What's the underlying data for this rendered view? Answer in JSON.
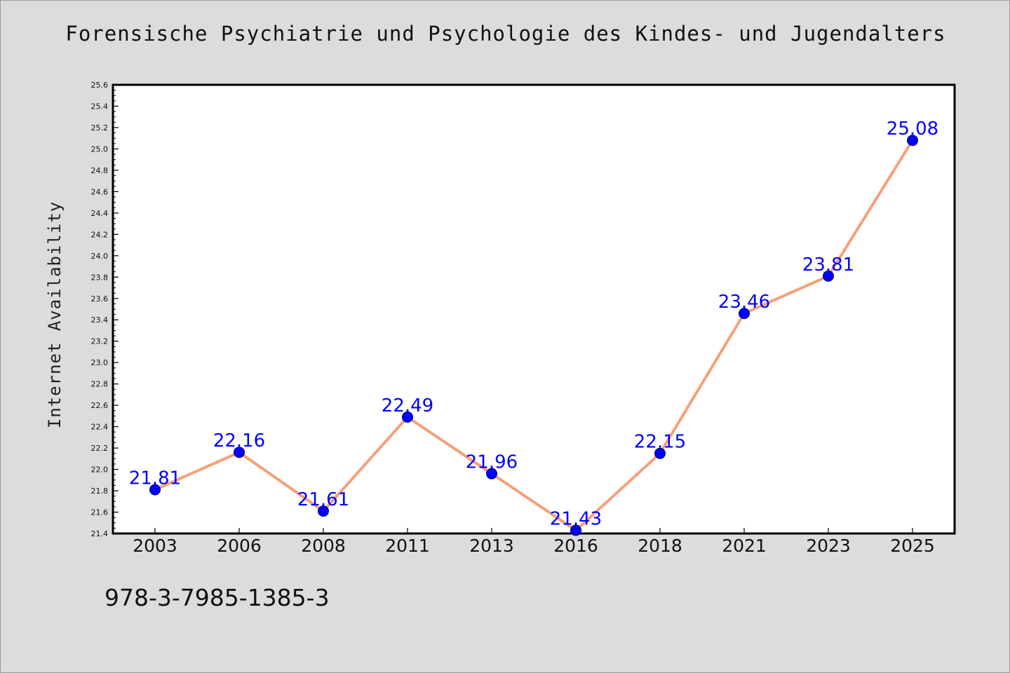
{
  "title": "Forensische Psychiatrie und Psychologie des Kindes- und Jugendalters",
  "footer_text": "978-3-7985-1385-3",
  "colors": {
    "background": "#dcdcdc",
    "plot_background": "#ffffff",
    "line": "#f4a07a",
    "marker": "#0000ff",
    "label": "#0000ff",
    "axis": "#000000"
  },
  "chart_data": {
    "type": "line",
    "title": "Forensische Psychiatrie und Psychologie des Kindes- und Jugendalters",
    "xlabel": "",
    "ylabel": "Internet Availability",
    "categories": [
      "2003",
      "2006",
      "2008",
      "2011",
      "2013",
      "2016",
      "2018",
      "2021",
      "2023",
      "2025"
    ],
    "series": [
      {
        "values": [
          21.81,
          22.16,
          21.61,
          22.49,
          21.96,
          21.43,
          22.15,
          23.46,
          23.81,
          25.08
        ],
        "data_labels": [
          "21.81",
          "22.16",
          "21.61",
          "22.49",
          "21.96",
          "21.43",
          "22.15",
          "23.46",
          "23.81",
          "25.08"
        ]
      }
    ],
    "ylim": [
      21.4,
      25.6
    ],
    "yticks": [
      "21.4",
      "21.6",
      "21.8",
      "22.0",
      "22.2",
      "22.4",
      "22.6",
      "22.8",
      "23.0",
      "23.2",
      "23.4",
      "23.6",
      "23.8",
      "24.0",
      "24.2",
      "24.4",
      "24.6",
      "24.8",
      "25.0",
      "25.2",
      "25.4",
      "25.6"
    ],
    "grid": false,
    "legend": "none"
  }
}
